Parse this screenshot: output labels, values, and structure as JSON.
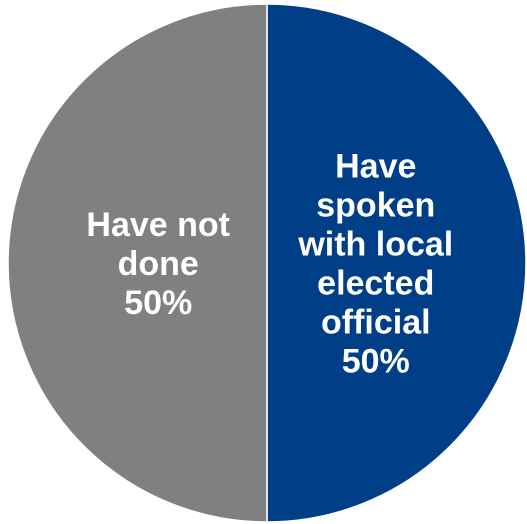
{
  "chart_data": {
    "type": "pie",
    "slices": [
      {
        "lines": [
          "Have",
          "spoken",
          "with local",
          "elected",
          "official"
        ],
        "value_label": "50%",
        "value": 50,
        "color": "#003f87"
      },
      {
        "lines": [
          "Have not",
          "done"
        ],
        "value_label": "50%",
        "value": 50,
        "color": "#808080"
      }
    ],
    "start_angle_deg": 0,
    "direction": "clockwise",
    "legend": "none",
    "border_color": "#ffffff"
  }
}
